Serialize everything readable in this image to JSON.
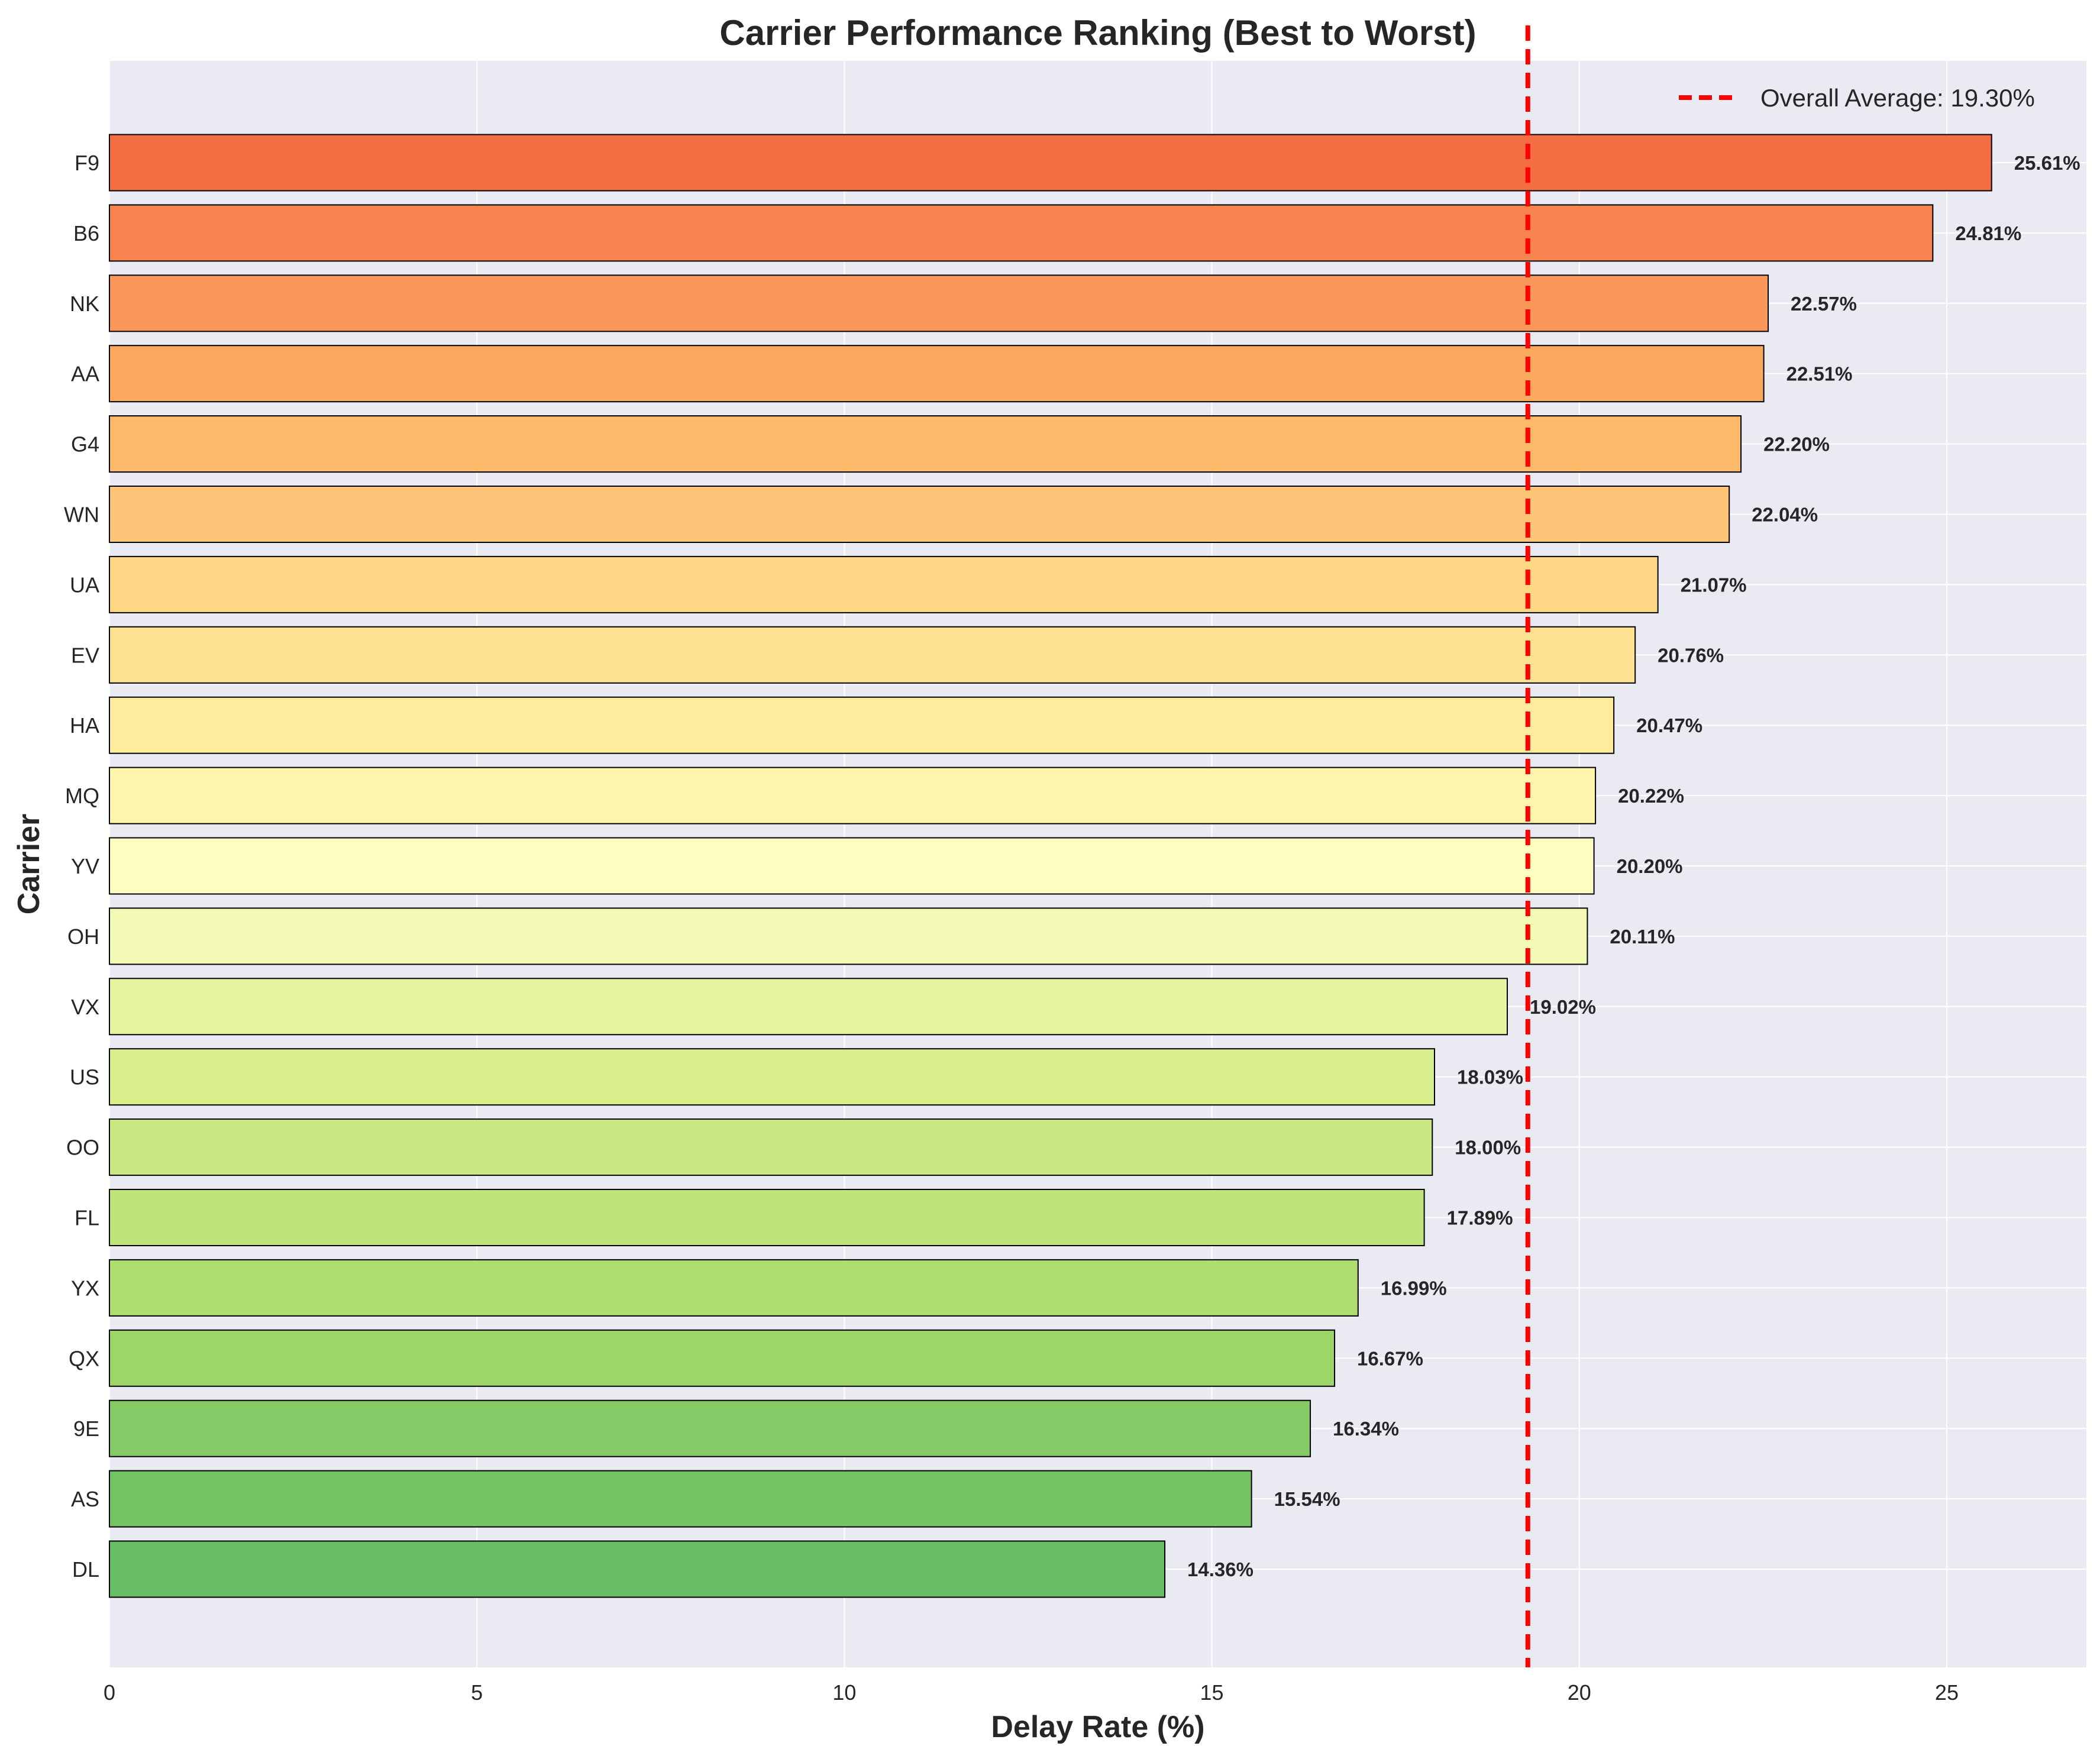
{
  "chart_data": {
    "type": "bar",
    "orientation": "horizontal",
    "title": "Carrier Performance Ranking (Best to Worst)",
    "xlabel": "Delay Rate (%)",
    "ylabel": "Carrier",
    "xlim": [
      0,
      26.9
    ],
    "xticks": [
      0,
      5,
      10,
      15,
      20,
      25
    ],
    "grid": true,
    "legend_position": "top-right",
    "categories": [
      "F9",
      "B6",
      "NK",
      "AA",
      "G4",
      "WN",
      "UA",
      "EV",
      "HA",
      "MQ",
      "YV",
      "OH",
      "VX",
      "US",
      "OO",
      "FL",
      "YX",
      "QX",
      "9E",
      "AS",
      "DL"
    ],
    "values": [
      25.61,
      24.81,
      22.57,
      22.51,
      22.2,
      22.04,
      21.07,
      20.76,
      20.47,
      20.22,
      20.2,
      20.11,
      19.02,
      18.03,
      18.0,
      17.89,
      16.99,
      16.67,
      16.34,
      15.54,
      14.36
    ],
    "value_labels": [
      "25.61%",
      "24.81%",
      "22.57%",
      "22.51%",
      "22.20%",
      "22.04%",
      "21.07%",
      "20.76%",
      "20.47%",
      "20.22%",
      "20.20%",
      "20.11%",
      "19.02%",
      "18.03%",
      "18.00%",
      "17.89%",
      "16.99%",
      "16.67%",
      "16.34%",
      "15.54%",
      "14.36%"
    ],
    "bar_colors": [
      "#f46d43",
      "#f7844e",
      "#f99858",
      "#fba95f",
      "#fdb96a",
      "#fdc577",
      "#fed684",
      "#fee191",
      "#feeb9d",
      "#fff5ad",
      "#fefec0",
      "#f3fab6",
      "#e6f59f",
      "#d9ef8b",
      "#cbe982",
      "#bfe47a",
      "#aedc6f",
      "#9dd569",
      "#84ca67",
      "#74c364",
      "#66bd63"
    ],
    "reference_line": {
      "value": 19.3,
      "label": "Overall Average: 19.30%",
      "color": "#ff0000"
    },
    "colors": {
      "plot_background": "#eaeaf2",
      "grid": "#ffffff",
      "bar_edge": "#000000"
    }
  }
}
